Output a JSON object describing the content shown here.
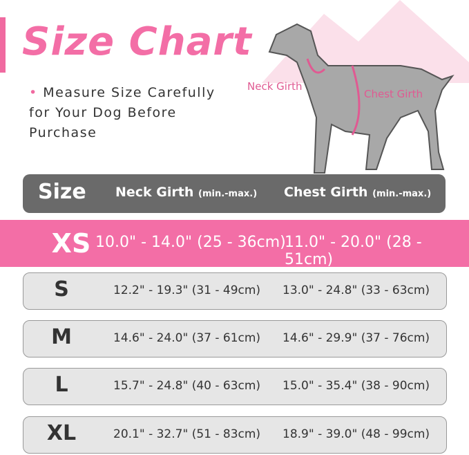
{
  "title": "Size Chart",
  "note": {
    "line1": "Measure Size Carefully",
    "line2": "for Your Dog Before",
    "line3": "Purchase"
  },
  "labels": {
    "neck": "Neck Girth",
    "chest": "Chest Girth"
  },
  "header": {
    "size": "Size",
    "neck": "Neck Girth",
    "neck_unit": "(min.-max.)",
    "chest": "Chest Girth",
    "chest_unit": "(min.-max.)"
  },
  "colors": {
    "accent": "#f36ea6",
    "header": "#6a6a6a",
    "row": "#e6e6e6"
  },
  "rows": [
    {
      "size": "XS",
      "neck": "10.0\" - 14.0\" (25 - 36cm)",
      "chest": "11.0\" - 20.0\" (28 - 51cm)",
      "highlighted": true
    },
    {
      "size": "S",
      "neck": "12.2\" - 19.3\" (31 - 49cm)",
      "chest": "13.0\" - 24.8\" (33 - 63cm)"
    },
    {
      "size": "M",
      "neck": "14.6\" - 24.0\" (37 - 61cm)",
      "chest": "14.6\" - 29.9\" (37 - 76cm)"
    },
    {
      "size": "L",
      "neck": "15.7\" - 24.8\" (40 - 63cm)",
      "chest": "15.0\" - 35.4\" (38 - 90cm)"
    },
    {
      "size": "XL",
      "neck": "20.1\" - 32.7\" (51 - 83cm)",
      "chest": "18.9\" - 39.0\" (48 - 99cm)"
    }
  ]
}
